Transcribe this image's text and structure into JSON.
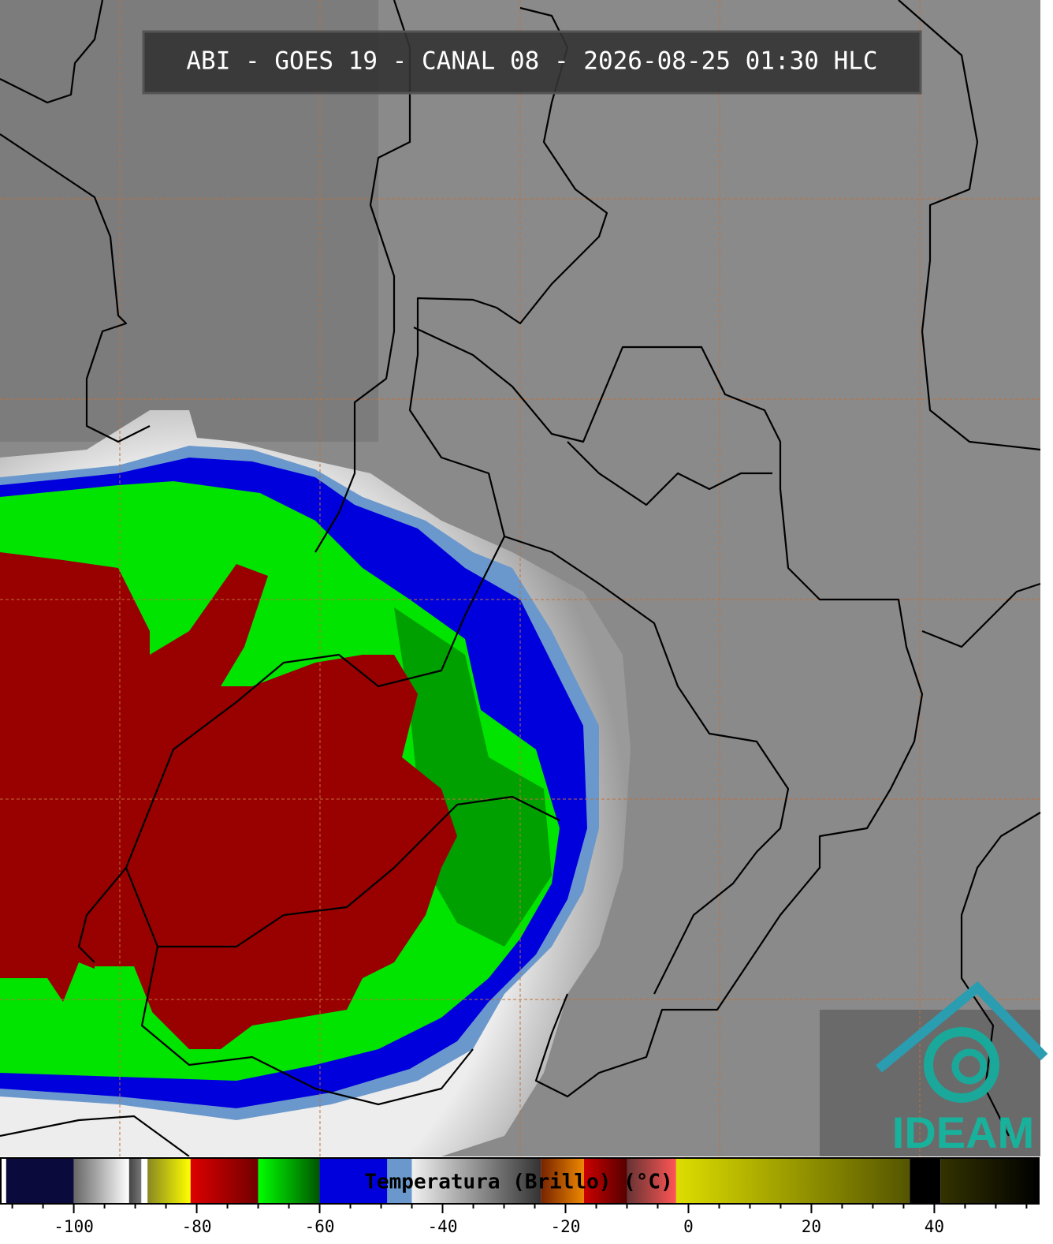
{
  "title": "ABI - GOES 19 - CANAL 08 - 2026-08-25 01:30 HLC",
  "colorbar": {
    "label": "Temperatura (Brillo) (°C)",
    "range": [
      -112,
      57
    ],
    "ticks": [
      -100,
      -80,
      -60,
      -40,
      -20,
      0,
      20,
      40
    ],
    "minor_ticks": [
      -110,
      -105,
      -95,
      -90,
      -85,
      -75,
      -70,
      -65,
      -55,
      -50,
      -45,
      -35,
      -30,
      -25,
      -15,
      -10,
      -5,
      5,
      10,
      15,
      25,
      30,
      35,
      45,
      50,
      55
    ],
    "segments": [
      {
        "from": -112,
        "to": -111,
        "color": "#ffffff",
        "color2": "#ffffff"
      },
      {
        "from": -111,
        "to": -100,
        "color": "#0a0a3c",
        "color2": "#0a0a3c"
      },
      {
        "from": -100,
        "to": -91,
        "color": "#666666",
        "color2": "#ffffff"
      },
      {
        "from": -91,
        "to": -89,
        "color": "#444444",
        "color2": "#777777"
      },
      {
        "from": -89,
        "to": -88,
        "color": "#ffffff",
        "color2": "#ffffff"
      },
      {
        "from": -88,
        "to": -81,
        "color": "#888822",
        "color2": "#ffff00"
      },
      {
        "from": -81,
        "to": -70,
        "color": "#dd0000",
        "color2": "#700000"
      },
      {
        "from": -70,
        "to": -60,
        "color": "#00ff00",
        "color2": "#005500"
      },
      {
        "from": -60,
        "to": -49,
        "color": "#0000dd",
        "color2": "#0000dd"
      },
      {
        "from": -49,
        "to": -45,
        "color": "#6b98cc",
        "color2": "#6b98cc"
      },
      {
        "from": -45,
        "to": -24,
        "color": "#f0f0f0",
        "color2": "#333333"
      },
      {
        "from": -24,
        "to": -17,
        "color": "#772200",
        "color2": "#ee8800"
      },
      {
        "from": -17,
        "to": -10,
        "color": "#cc0000",
        "color2": "#550000"
      },
      {
        "from": -10,
        "to": -2,
        "color": "#663333",
        "color2": "#ff5555"
      },
      {
        "from": -2,
        "to": 36,
        "color": "#dddd00",
        "color2": "#555500"
      },
      {
        "from": 36,
        "to": 41,
        "color": "#000000",
        "color2": "#000000"
      },
      {
        "from": 41,
        "to": 57,
        "color": "#333300",
        "color2": "#000000"
      }
    ]
  },
  "logo": {
    "text": "IDEAM"
  }
}
